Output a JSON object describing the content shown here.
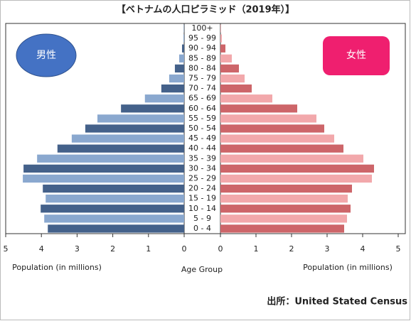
{
  "chart_data": {
    "type": "pyramid",
    "title": "【ベトナムの人口ピラミッド（2019年）】",
    "x_label_left": "Population (in millions)",
    "x_label_right": "Population (in millions)",
    "y_label": "Age Group",
    "source": "出所：United Stated Census",
    "categories": [
      "0 - 4",
      "5 - 9",
      "10 - 14",
      "15 - 19",
      "20 - 24",
      "25 - 29",
      "30 - 34",
      "35 - 39",
      "40 - 44",
      "45 - 49",
      "50 - 54",
      "55 - 59",
      "60 - 64",
      "65 - 69",
      "70 - 74",
      "75 - 79",
      "80 - 84",
      "85 - 89",
      "90 - 94",
      "95 - 99",
      "100+"
    ],
    "series": [
      {
        "name": "男性",
        "side": "left",
        "colors": [
          "#44618a",
          "#8aa8cf"
        ],
        "legend_color": "#4472c4",
        "values": [
          3.82,
          3.92,
          4.02,
          3.88,
          3.96,
          4.52,
          4.5,
          4.12,
          3.55,
          3.15,
          2.77,
          2.43,
          1.77,
          1.1,
          0.64,
          0.42,
          0.26,
          0.14,
          0.06,
          0.02,
          0.01
        ]
      },
      {
        "name": "女性",
        "side": "right",
        "colors": [
          "#cd6569",
          "#f2a8ab"
        ],
        "legend_color": "#ef1f6f",
        "values": [
          3.48,
          3.56,
          3.66,
          3.58,
          3.7,
          4.26,
          4.32,
          4.02,
          3.46,
          3.2,
          2.92,
          2.7,
          2.16,
          1.46,
          0.88,
          0.68,
          0.52,
          0.32,
          0.14,
          0.04,
          0.01
        ]
      }
    ],
    "xlim": [
      0,
      5
    ],
    "xticks": [
      0,
      1,
      2,
      3,
      4,
      5
    ]
  }
}
